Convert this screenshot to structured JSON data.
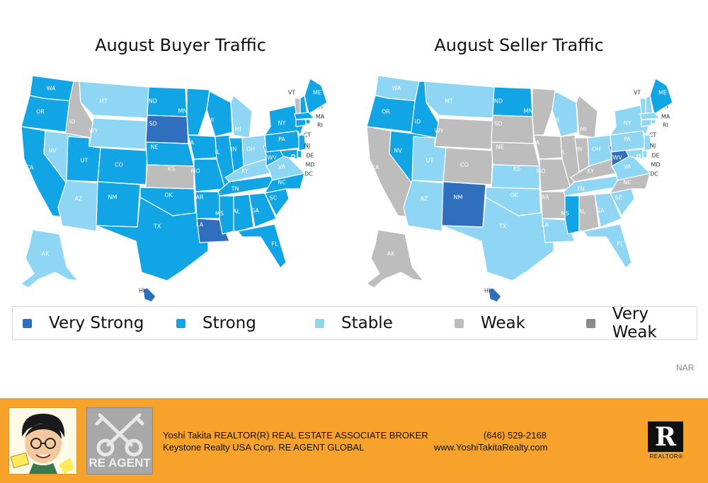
{
  "titles": {
    "buyer": "August Buyer Traffic",
    "seller": "August Seller Traffic"
  },
  "colors": {
    "very_strong": "#2f6fbd",
    "strong": "#12a5e6",
    "stable": "#8fd6f4",
    "weak": "#bdbdbd",
    "very_weak": "#8a8a8a"
  },
  "legend": [
    {
      "key": "very_strong",
      "label": "Very Strong"
    },
    {
      "key": "strong",
      "label": "Strong"
    },
    {
      "key": "stable",
      "label": "Stable"
    },
    {
      "key": "weak",
      "label": "Weak"
    },
    {
      "key": "very_weak",
      "label": "Very Weak"
    }
  ],
  "buyer_states": {
    "WA": "strong",
    "OR": "strong",
    "CA": "strong",
    "ID": "weak",
    "NV": "stable",
    "MT": "stable",
    "WY": "stable",
    "UT": "strong",
    "AZ": "stable",
    "CO": "strong",
    "NM": "strong",
    "ND": "strong",
    "SD": "very_strong",
    "NE": "strong",
    "KS": "weak",
    "OK": "strong",
    "TX": "strong",
    "MN": "strong",
    "IA": "strong",
    "MO": "strong",
    "AR": "strong",
    "LA": "very_strong",
    "WI": "strong",
    "IL": "strong",
    "MI": "stable",
    "IN": "strong",
    "OH": "stable",
    "KY": "stable",
    "TN": "strong",
    "MS": "strong",
    "AL": "strong",
    "GA": "strong",
    "FL": "strong",
    "SC": "strong",
    "NC": "strong",
    "VA": "stable",
    "WV": "strong",
    "PA": "strong",
    "NY": "strong",
    "VT": "weak",
    "NH": "strong",
    "ME": "strong",
    "MA": "strong",
    "RI": "strong",
    "CT": "strong",
    "NJ": "strong",
    "DE": "strong",
    "MD": "strong",
    "DC": "strong",
    "AK": "stable",
    "HI": "very_strong"
  },
  "seller_states": {
    "WA": "stable",
    "OR": "strong",
    "CA": "weak",
    "ID": "strong",
    "NV": "strong",
    "MT": "stable",
    "WY": "weak",
    "UT": "stable",
    "AZ": "stable",
    "CO": "weak",
    "NM": "very_strong",
    "ND": "strong",
    "SD": "weak",
    "NE": "weak",
    "KS": "stable",
    "OK": "stable",
    "TX": "stable",
    "MN": "weak",
    "IA": "weak",
    "MO": "weak",
    "AR": "weak",
    "LA": "stable",
    "WI": "stable",
    "IL": "weak",
    "MI": "weak",
    "IN": "weak",
    "OH": "stable",
    "KY": "weak",
    "TN": "stable",
    "MS": "strong",
    "AL": "weak",
    "GA": "stable",
    "FL": "stable",
    "SC": "stable",
    "NC": "weak",
    "VA": "stable",
    "WV": "very_strong",
    "PA": "stable",
    "NY": "stable",
    "VT": "stable",
    "NH": "stable",
    "ME": "strong",
    "MA": "stable",
    "RI": "stable",
    "CT": "stable",
    "NJ": "stable",
    "DE": "stable",
    "MD": "stable",
    "DC": "stable",
    "AK": "weak",
    "HI": "very_strong"
  },
  "source": "NAR",
  "footer": {
    "agent_line1": "Yoshi Takita REALTOR(R) REAL ESTATE ASSOCIATE BROKER",
    "agent_line2": "Keystone Realty USA Corp.  RE AGENT GLOBAL",
    "phone": "(646) 529-2168",
    "website": "www.YoshiTakitaRealty.com",
    "re_logo_text": "RE AGENT",
    "realtor_logo_letter": "R",
    "realtor_logo_word": "REALTOR®"
  }
}
